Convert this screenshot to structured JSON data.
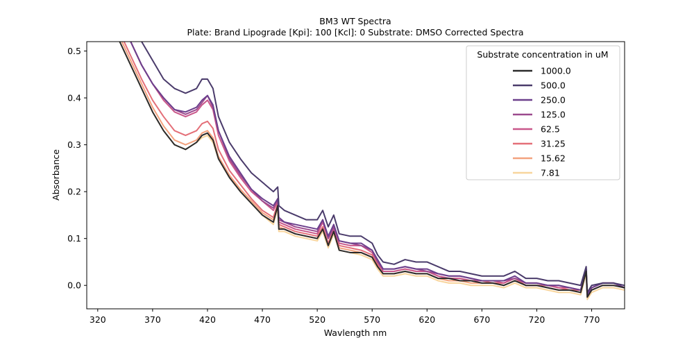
{
  "chart_data": {
    "type": "line",
    "title": "BM3 WT Spectra",
    "subtitle": "Plate: Brand Lipograde  [Kpi]: 100  [Kcl]: 0  Substrate: DMSO Corrected Spectra",
    "xlabel": "Wavlength nm",
    "ylabel": "Absorbance",
    "xlim": [
      310,
      800
    ],
    "ylim": [
      -0.05,
      0.52
    ],
    "x_ticks": [
      320,
      370,
      420,
      470,
      520,
      570,
      620,
      670,
      720,
      770
    ],
    "y_ticks": [
      "0.0",
      "0.1",
      "0.2",
      "0.3",
      "0.4",
      "0.5"
    ],
    "y_tick_values": [
      0.0,
      0.1,
      0.2,
      0.3,
      0.4,
      0.5
    ],
    "grid": false,
    "legend": {
      "title": "Substrate concentration in uM",
      "placement": "top-right"
    },
    "x": [
      340,
      350,
      360,
      370,
      380,
      390,
      400,
      410,
      415,
      420,
      425,
      430,
      440,
      450,
      460,
      470,
      480,
      484,
      485,
      490,
      500,
      510,
      520,
      525,
      530,
      535,
      540,
      550,
      560,
      570,
      575,
      580,
      590,
      600,
      610,
      620,
      630,
      640,
      650,
      660,
      670,
      680,
      690,
      700,
      710,
      720,
      730,
      740,
      750,
      760,
      765,
      766,
      770,
      780,
      790,
      800
    ],
    "base_profile": [
      0.52,
      0.47,
      0.42,
      0.37,
      0.33,
      0.3,
      0.29,
      0.305,
      0.32,
      0.325,
      0.31,
      0.27,
      0.23,
      0.2,
      0.175,
      0.15,
      0.135,
      0.17,
      0.12,
      0.12,
      0.11,
      0.105,
      0.1,
      0.12,
      0.085,
      0.115,
      0.075,
      0.07,
      0.07,
      0.06,
      0.04,
      0.025,
      0.025,
      0.03,
      0.025,
      0.025,
      0.015,
      0.015,
      0.01,
      0.01,
      0.005,
      0.005,
      0.0,
      0.01,
      0.0,
      0.0,
      -0.005,
      -0.01,
      -0.01,
      -0.015,
      0.03,
      -0.025,
      -0.01,
      0.0,
      0.0,
      -0.005
    ],
    "series": [
      {
        "name": "1000.0",
        "color": "#2b2b2b",
        "values": [
          0.52,
          0.47,
          0.42,
          0.37,
          0.33,
          0.3,
          0.29,
          0.305,
          0.32,
          0.325,
          0.31,
          0.27,
          0.23,
          0.2,
          0.175,
          0.15,
          0.135,
          0.17,
          0.12,
          0.12,
          0.11,
          0.105,
          0.1,
          0.12,
          0.085,
          0.115,
          0.075,
          0.07,
          0.07,
          0.06,
          0.04,
          0.025,
          0.025,
          0.03,
          0.025,
          0.025,
          0.015,
          0.015,
          0.01,
          0.01,
          0.005,
          0.005,
          0.0,
          0.01,
          0.0,
          0.0,
          -0.005,
          -0.01,
          -0.01,
          -0.015,
          0.03,
          -0.025,
          -0.01,
          0.0,
          0.0,
          -0.005
        ]
      },
      {
        "name": "500.0",
        "color": "#4a3b6b",
        "values": [
          0.59,
          0.56,
          0.52,
          0.48,
          0.44,
          0.42,
          0.41,
          0.42,
          0.44,
          0.44,
          0.42,
          0.36,
          0.305,
          0.27,
          0.24,
          0.22,
          0.2,
          0.21,
          0.17,
          0.16,
          0.15,
          0.14,
          0.14,
          0.16,
          0.125,
          0.15,
          0.11,
          0.105,
          0.105,
          0.09,
          0.065,
          0.05,
          0.045,
          0.055,
          0.05,
          0.05,
          0.04,
          0.03,
          0.03,
          0.025,
          0.02,
          0.02,
          0.02,
          0.03,
          0.015,
          0.015,
          0.01,
          0.01,
          0.005,
          0.0,
          0.04,
          -0.015,
          0.0,
          0.005,
          0.005,
          0.0
        ]
      },
      {
        "name": "250.0",
        "color": "#6c3f8c",
        "values": [
          0.57,
          0.52,
          0.47,
          0.43,
          0.4,
          0.375,
          0.37,
          0.38,
          0.395,
          0.405,
          0.385,
          0.33,
          0.275,
          0.24,
          0.205,
          0.185,
          0.17,
          0.185,
          0.145,
          0.135,
          0.13,
          0.125,
          0.12,
          0.14,
          0.105,
          0.13,
          0.095,
          0.09,
          0.09,
          0.075,
          0.055,
          0.035,
          0.035,
          0.04,
          0.035,
          0.035,
          0.025,
          0.02,
          0.02,
          0.015,
          0.01,
          0.01,
          0.01,
          0.02,
          0.005,
          0.005,
          0.0,
          0.0,
          -0.005,
          -0.01,
          0.035,
          -0.02,
          -0.005,
          0.005,
          0.005,
          -0.005
        ]
      },
      {
        "name": "125.0",
        "color": "#9c4a8e",
        "values": [
          0.57,
          0.52,
          0.47,
          0.43,
          0.4,
          0.375,
          0.365,
          0.375,
          0.39,
          0.405,
          0.38,
          0.33,
          0.27,
          0.235,
          0.205,
          0.18,
          0.165,
          0.185,
          0.14,
          0.135,
          0.125,
          0.12,
          0.115,
          0.14,
          0.1,
          0.125,
          0.095,
          0.09,
          0.085,
          0.075,
          0.05,
          0.035,
          0.035,
          0.04,
          0.035,
          0.03,
          0.025,
          0.02,
          0.02,
          0.015,
          0.01,
          0.01,
          0.01,
          0.015,
          0.005,
          0.005,
          0.0,
          0.0,
          -0.005,
          -0.01,
          0.035,
          -0.02,
          -0.005,
          0.005,
          0.005,
          -0.005
        ]
      },
      {
        "name": "62.5",
        "color": "#c9578a",
        "values": [
          0.57,
          0.52,
          0.47,
          0.43,
          0.395,
          0.37,
          0.36,
          0.37,
          0.385,
          0.395,
          0.375,
          0.32,
          0.265,
          0.23,
          0.2,
          0.18,
          0.16,
          0.18,
          0.135,
          0.13,
          0.12,
          0.115,
          0.11,
          0.135,
          0.1,
          0.12,
          0.09,
          0.085,
          0.085,
          0.07,
          0.05,
          0.03,
          0.03,
          0.035,
          0.03,
          0.03,
          0.02,
          0.015,
          0.015,
          0.01,
          0.01,
          0.01,
          0.005,
          0.015,
          0.005,
          0.005,
          0.0,
          -0.005,
          -0.005,
          -0.01,
          0.035,
          -0.02,
          -0.005,
          0.005,
          0.005,
          -0.005
        ]
      },
      {
        "name": "31.25",
        "color": "#e46f78",
        "values": [
          0.54,
          0.49,
          0.44,
          0.395,
          0.36,
          0.33,
          0.32,
          0.33,
          0.345,
          0.35,
          0.335,
          0.29,
          0.245,
          0.215,
          0.185,
          0.16,
          0.145,
          0.175,
          0.13,
          0.125,
          0.115,
          0.11,
          0.105,
          0.125,
          0.09,
          0.12,
          0.085,
          0.08,
          0.075,
          0.065,
          0.045,
          0.03,
          0.03,
          0.035,
          0.03,
          0.03,
          0.02,
          0.015,
          0.015,
          0.01,
          0.01,
          0.005,
          0.005,
          0.015,
          0.0,
          0.0,
          0.0,
          -0.005,
          -0.01,
          -0.01,
          0.035,
          -0.02,
          -0.005,
          0.005,
          0.005,
          -0.005
        ]
      },
      {
        "name": "15.62",
        "color": "#f3a27e",
        "values": [
          0.53,
          0.48,
          0.43,
          0.38,
          0.34,
          0.31,
          0.3,
          0.31,
          0.325,
          0.33,
          0.315,
          0.275,
          0.235,
          0.205,
          0.18,
          0.155,
          0.14,
          0.17,
          0.125,
          0.12,
          0.11,
          0.105,
          0.1,
          0.12,
          0.085,
          0.115,
          0.08,
          0.075,
          0.07,
          0.06,
          0.04,
          0.025,
          0.025,
          0.03,
          0.025,
          0.025,
          0.015,
          0.01,
          0.01,
          0.005,
          0.005,
          0.005,
          0.0,
          0.01,
          0.0,
          0.0,
          -0.005,
          -0.01,
          -0.01,
          -0.015,
          0.03,
          -0.025,
          -0.01,
          0.0,
          0.0,
          -0.005
        ]
      },
      {
        "name": "7.81",
        "color": "#f8d59d",
        "values": [
          0.52,
          0.47,
          0.42,
          0.37,
          0.33,
          0.3,
          0.29,
          0.305,
          0.315,
          0.32,
          0.305,
          0.27,
          0.23,
          0.2,
          0.175,
          0.15,
          0.13,
          0.165,
          0.115,
          0.115,
          0.105,
          0.1,
          0.095,
          0.115,
          0.08,
          0.11,
          0.075,
          0.07,
          0.065,
          0.055,
          0.035,
          0.02,
          0.02,
          0.025,
          0.02,
          0.02,
          0.01,
          0.005,
          0.005,
          0.0,
          0.0,
          0.0,
          -0.005,
          0.005,
          -0.005,
          -0.005,
          -0.01,
          -0.015,
          -0.015,
          -0.02,
          0.025,
          -0.03,
          -0.015,
          -0.005,
          -0.005,
          -0.01
        ]
      }
    ]
  }
}
